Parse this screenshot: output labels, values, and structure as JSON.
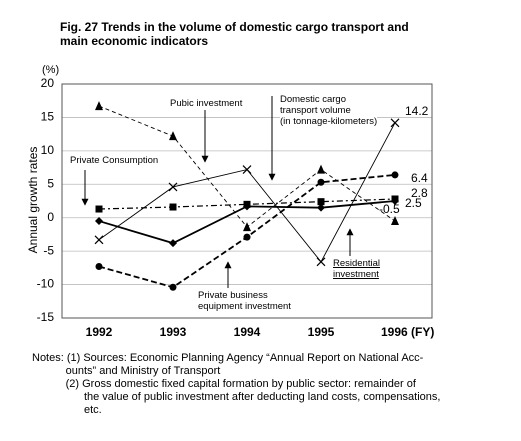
{
  "chart_data": {
    "type": "line",
    "title": "Fig. 27 Trends in the volume of domestic cargo transport and\nmain economic indicators",
    "y_unit": "(%)",
    "y_label": "Annual growth rates",
    "categories": [
      "1992",
      "1993",
      "1994",
      "1995",
      "1996 (FY)"
    ],
    "ylim": [
      -15,
      20
    ],
    "yticks": [
      20,
      15,
      10,
      5,
      0,
      -5,
      -10,
      -15
    ],
    "grid": true,
    "series": [
      {
        "name": "Pubic investment",
        "color": "#000000",
        "marker": "triangle",
        "line_style": "dashed-thin",
        "values": [
          16.7,
          12.2,
          -1.4,
          7.2,
          -0.5
        ]
      },
      {
        "name": "Domestic cargo\ntransport volume\n(in tonnage-kilometers)",
        "color": "#000000",
        "marker": "x",
        "line_style": "solid-thin",
        "values": [
          -3.3,
          4.6,
          7.2,
          -6.6,
          14.2
        ]
      },
      {
        "name": "Private Consumption",
        "color": "#000000",
        "marker": "square",
        "line_style": "dashdot",
        "values": [
          1.3,
          1.6,
          2.0,
          2.4,
          2.8
        ]
      },
      {
        "name": "Private business\nequipment investment",
        "color": "#000000",
        "marker": "circle",
        "line_style": "dashed-bold",
        "values": [
          -7.3,
          -10.4,
          -2.9,
          5.3,
          6.4
        ]
      },
      {
        "name": "Residential\ninvestment",
        "color": "#000000",
        "marker": "diamond",
        "line_style": "solid-bold",
        "values": [
          -0.5,
          -3.8,
          1.7,
          1.5,
          2.5
        ]
      }
    ],
    "notes": [
      "Notes: (1) Sources: Economic Planning Agency “Annual Report on National Acc-\n           ounts” and Ministry of Transport",
      "           (2) Gross domestic fixed capital formation by public sector: remainder of\n                 the value of public investment after deducting land costs, compensations,\n                 etc."
    ]
  }
}
